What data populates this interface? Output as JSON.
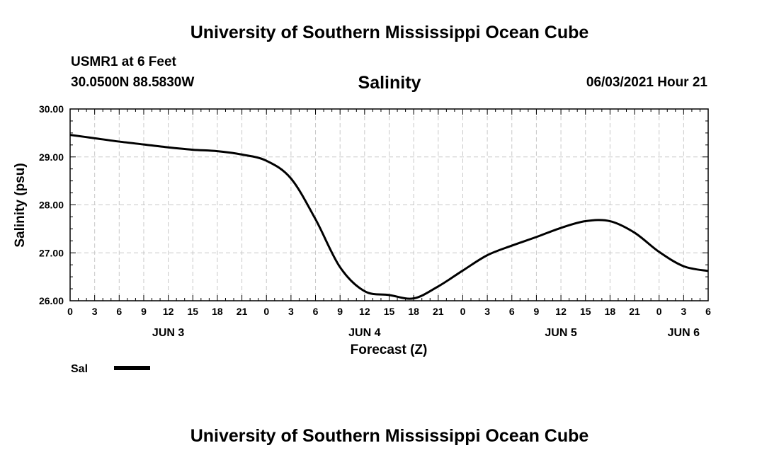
{
  "header": {
    "title": "University of Southern Mississippi Ocean Cube",
    "station": "USMR1 at 6 Feet",
    "coords": "30.0500N  88.5830W",
    "chart_title": "Salinity",
    "timestamp": "06/03/2021 Hour 21"
  },
  "footer": {
    "title": "University of Southern Mississippi Ocean Cube"
  },
  "colors": {
    "line": "#000000",
    "grid": "#c8c8c8",
    "axis": "#000000"
  },
  "chart_data": {
    "type": "line",
    "title": "Salinity",
    "xlabel": "Forecast (Z)",
    "ylabel": "Salinity (psu)",
    "ylim": [
      26.0,
      30.0
    ],
    "xlim_hours": [
      0,
      78
    ],
    "x_tick_step_hours": 3,
    "y_ticks": [
      "26.00",
      "27.00",
      "28.00",
      "29.00",
      "30.00"
    ],
    "x_tick_labels": [
      "0",
      "3",
      "6",
      "9",
      "12",
      "15",
      "18",
      "21",
      "0",
      "3",
      "6",
      "9",
      "12",
      "15",
      "18",
      "21",
      "0",
      "3",
      "6",
      "9",
      "12",
      "15",
      "18",
      "21",
      "0",
      "3",
      "6"
    ],
    "day_labels": [
      {
        "label": "JUN 3",
        "hour": 12
      },
      {
        "label": "JUN 4",
        "hour": 36
      },
      {
        "label": "JUN 5",
        "hour": 60
      },
      {
        "label": "JUN 6",
        "hour": 75
      }
    ],
    "legend": [
      {
        "name": "Sal",
        "color": "#000000"
      }
    ],
    "grid": true,
    "series": [
      {
        "name": "Sal",
        "x": [
          0,
          3,
          6,
          9,
          12,
          15,
          18,
          21,
          24,
          27,
          30,
          33,
          36,
          39,
          42,
          45,
          48,
          51,
          54,
          57,
          60,
          63,
          66,
          69,
          72,
          75,
          78
        ],
        "values": [
          29.46,
          29.39,
          29.32,
          29.26,
          29.2,
          29.15,
          29.12,
          29.05,
          28.92,
          28.55,
          27.7,
          26.7,
          26.2,
          26.12,
          26.05,
          26.3,
          26.63,
          26.95,
          27.15,
          27.33,
          27.52,
          27.66,
          27.66,
          27.42,
          27.02,
          26.72,
          26.62
        ]
      }
    ]
  }
}
